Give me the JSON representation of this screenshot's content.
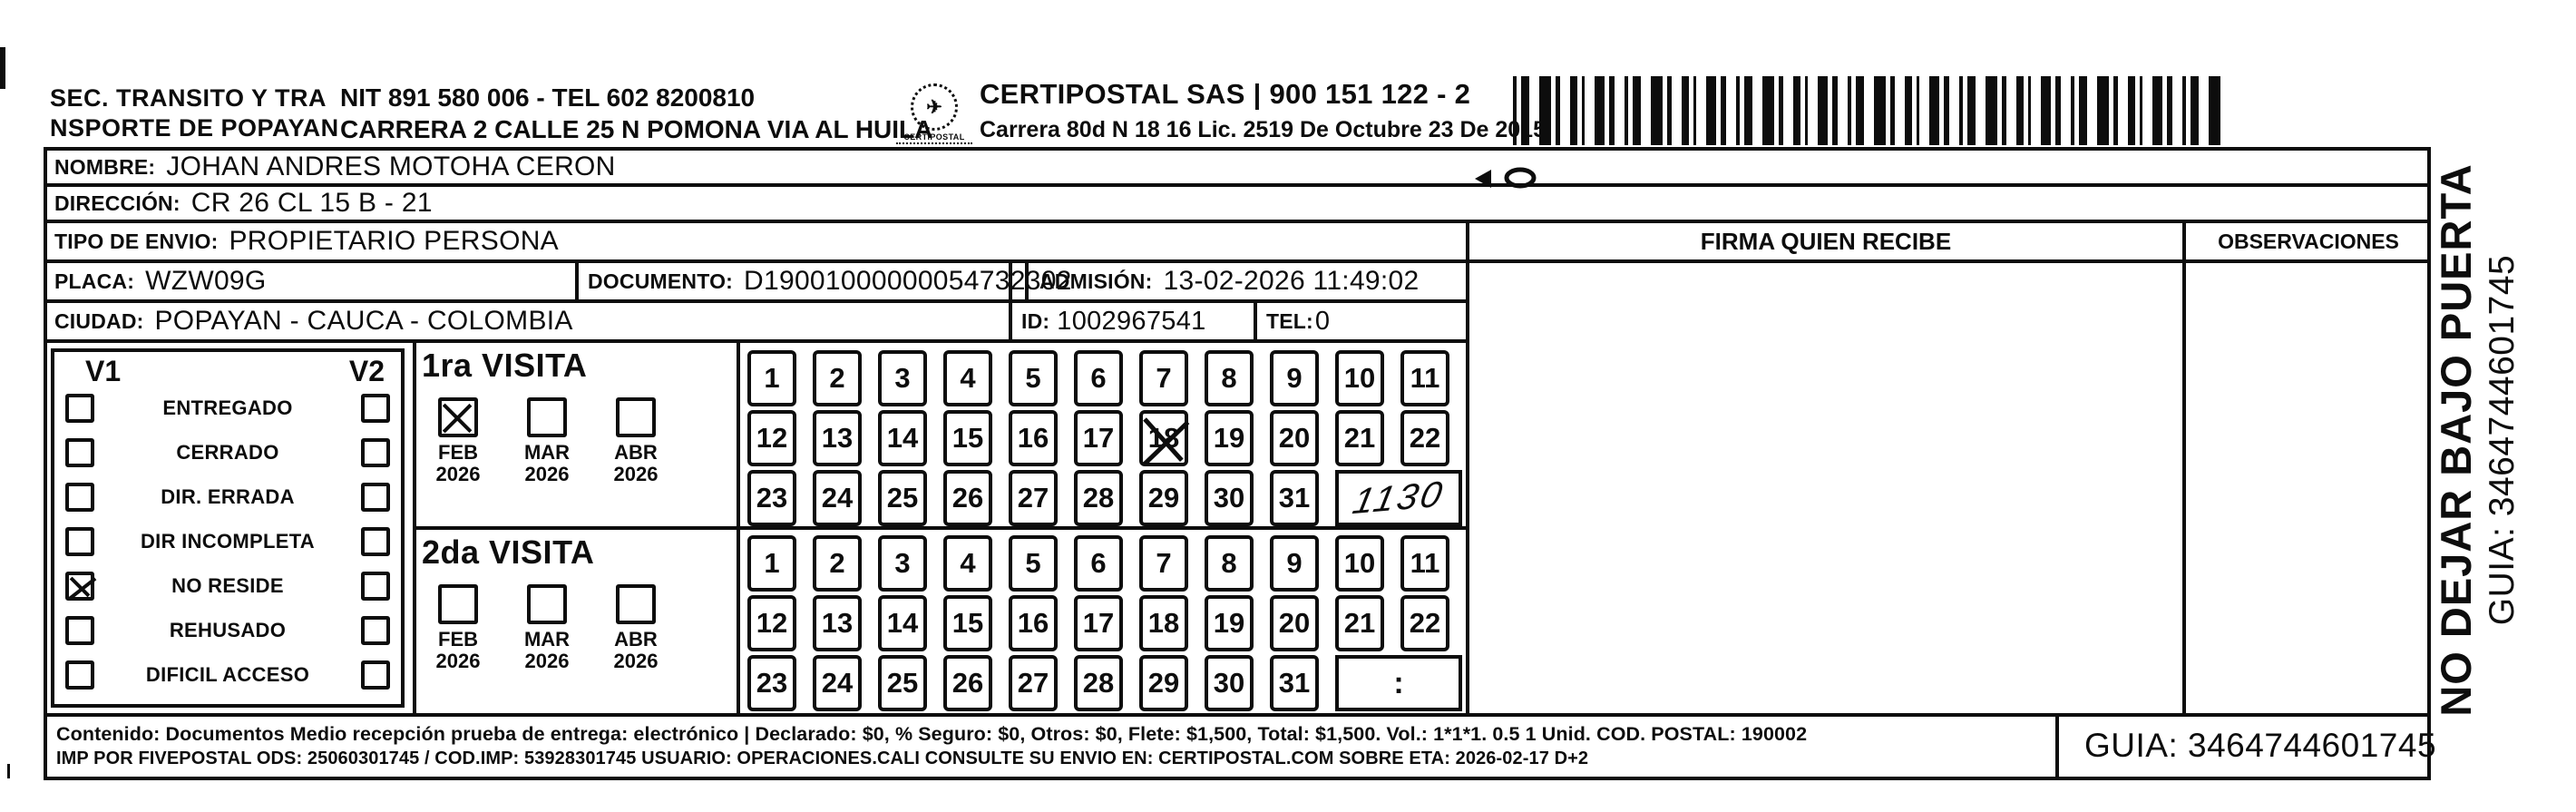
{
  "scan": {
    "sender_line1": "SEC. TRANSITO Y TRA",
    "sender_line2": "NSPORTE DE POPAYAN",
    "sender_nit": "NIT 891 580 006 - TEL 602 8200810",
    "sender_address": "CARRERA 2 CALLE 25 N POMONA VIA AL HUILA",
    "logo_text": "CERTIPOSTAL",
    "carrier_name": "CERTIPOSTAL SAS | 900 151 122 - 2",
    "carrier_address": "Carrera 80d N 18 16  Lic. 2519 De Octubre 23 De 2015"
  },
  "fields": {
    "nombre_label": "NOMBRE:",
    "nombre": "JOHAN ANDRES MOTOHA CERON",
    "direccion_label": "DIRECCIÓN:",
    "direccion": "CR 26 CL 15 B - 21",
    "tipo_envio_label": "TIPO DE ENVIO:",
    "tipo_envio": "PROPIETARIO PERSONA",
    "placa_label": "PLACA:",
    "placa": "WZW09G",
    "documento_label": "DOCUMENTO:",
    "documento": "D19001000000054732302",
    "admision_label": "ADMISIÓN:",
    "admision": "13-02-2026 11:49:02",
    "ciudad_label": "CIUDAD:",
    "ciudad": "POPAYAN - CAUCA - COLOMBIA",
    "id_label": "ID:",
    "id": "1002967541",
    "tel_label": "TEL:",
    "tel": "0"
  },
  "checklist": {
    "v1_header": "V1",
    "v2_header": "V2",
    "options": [
      {
        "label": "ENTREGADO",
        "v1_checked": false,
        "v2_checked": false
      },
      {
        "label": "CERRADO",
        "v1_checked": false,
        "v2_checked": false
      },
      {
        "label": "DIR. ERRADA",
        "v1_checked": false,
        "v2_checked": false
      },
      {
        "label": "DIR INCOMPLETA",
        "v1_checked": false,
        "v2_checked": false
      },
      {
        "label": "NO RESIDE",
        "v1_checked": true,
        "v2_checked": false
      },
      {
        "label": "REHUSADO",
        "v1_checked": false,
        "v2_checked": false
      },
      {
        "label": "DIFICIL ACCESO",
        "v1_checked": false,
        "v2_checked": false
      }
    ]
  },
  "visits": [
    {
      "title": "1ra VISITA",
      "months": [
        {
          "month": "FEB",
          "year": "2026",
          "checked": true
        },
        {
          "month": "MAR",
          "year": "2026",
          "checked": false
        },
        {
          "month": "ABR",
          "year": "2026",
          "checked": false
        }
      ],
      "crossed_days": [
        18
      ],
      "tail_box_text": "1130",
      "tail_box_handwritten": true
    },
    {
      "title": "2da VISITA",
      "months": [
        {
          "month": "FEB",
          "year": "2026",
          "checked": false
        },
        {
          "month": "MAR",
          "year": "2026",
          "checked": false
        },
        {
          "month": "ABR",
          "year": "2026",
          "checked": false
        }
      ],
      "crossed_days": [],
      "tail_box_text": ":",
      "tail_box_handwritten": false
    }
  ],
  "days": [
    1,
    2,
    3,
    4,
    5,
    6,
    7,
    8,
    9,
    10,
    11,
    12,
    13,
    14,
    15,
    16,
    17,
    18,
    19,
    20,
    21,
    22,
    23,
    24,
    25,
    26,
    27,
    28,
    29,
    30,
    31
  ],
  "signature_area": {
    "firma_header": "FIRMA QUIEN RECIBE",
    "observaciones_header": "OBSERVACIONES"
  },
  "side_note": {
    "line1": "NO DEJAR BAJO PUERTA",
    "line2": "GUIA: 3464744601745"
  },
  "footer": {
    "line1": "Contenido: Documentos Medio recepción prueba de entrega: electrónico | Declarado: $0, % Seguro: $0, Otros: $0, Flete: $1,500, Total: $1,500. Vol.: 1*1*1. 0.5  1 Unid. COD. POSTAL: 190002",
    "line2": "IMP POR FIVEPOSTAL ODS: 25060301745 / COD.IMP: 53928301745 USUARIO: OPERACIONES.CALI CONSULTE SU ENVIO EN: CERTIPOSTAL.COM SOBRE ETA: 2026-02-17 D+2",
    "guia": "GUIA: 3464744601745"
  },
  "colors": {
    "ink": "#0d0d0d",
    "paper": "#ffffff"
  }
}
